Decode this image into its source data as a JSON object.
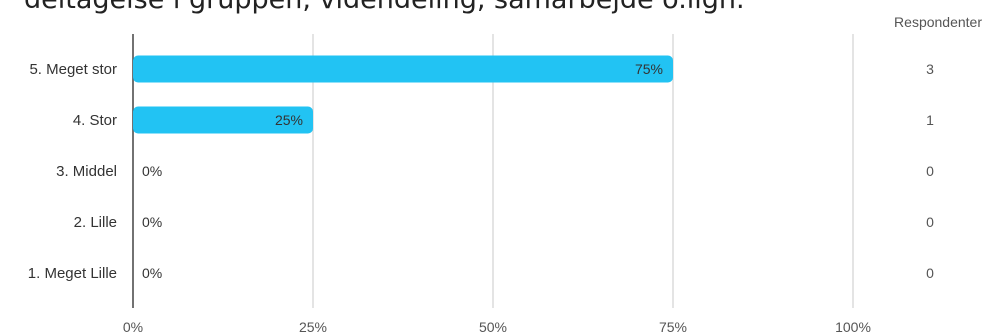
{
  "chart_data": {
    "type": "bar",
    "orientation": "horizontal",
    "title": "deltagelse i gruppen, videndeling, samarbejde o.lign.",
    "categories": [
      "5. Meget stor",
      "4. Stor",
      "3. Middel",
      "2. Lille",
      "1. Meget Lille"
    ],
    "values": [
      75,
      25,
      0,
      0,
      0
    ],
    "value_labels": [
      "75%",
      "25%",
      "0%",
      "0%",
      "0%"
    ],
    "respondents_header": "Respondenter",
    "respondents": [
      "3",
      "1",
      "0",
      "0",
      "0"
    ],
    "xlim": [
      0,
      100
    ],
    "x_ticks": [
      0,
      25,
      50,
      75,
      100
    ],
    "x_tick_labels": [
      "0%",
      "25%",
      "50%",
      "75%",
      "100%"
    ],
    "grid": true,
    "bar_color": "#22c3f3"
  }
}
